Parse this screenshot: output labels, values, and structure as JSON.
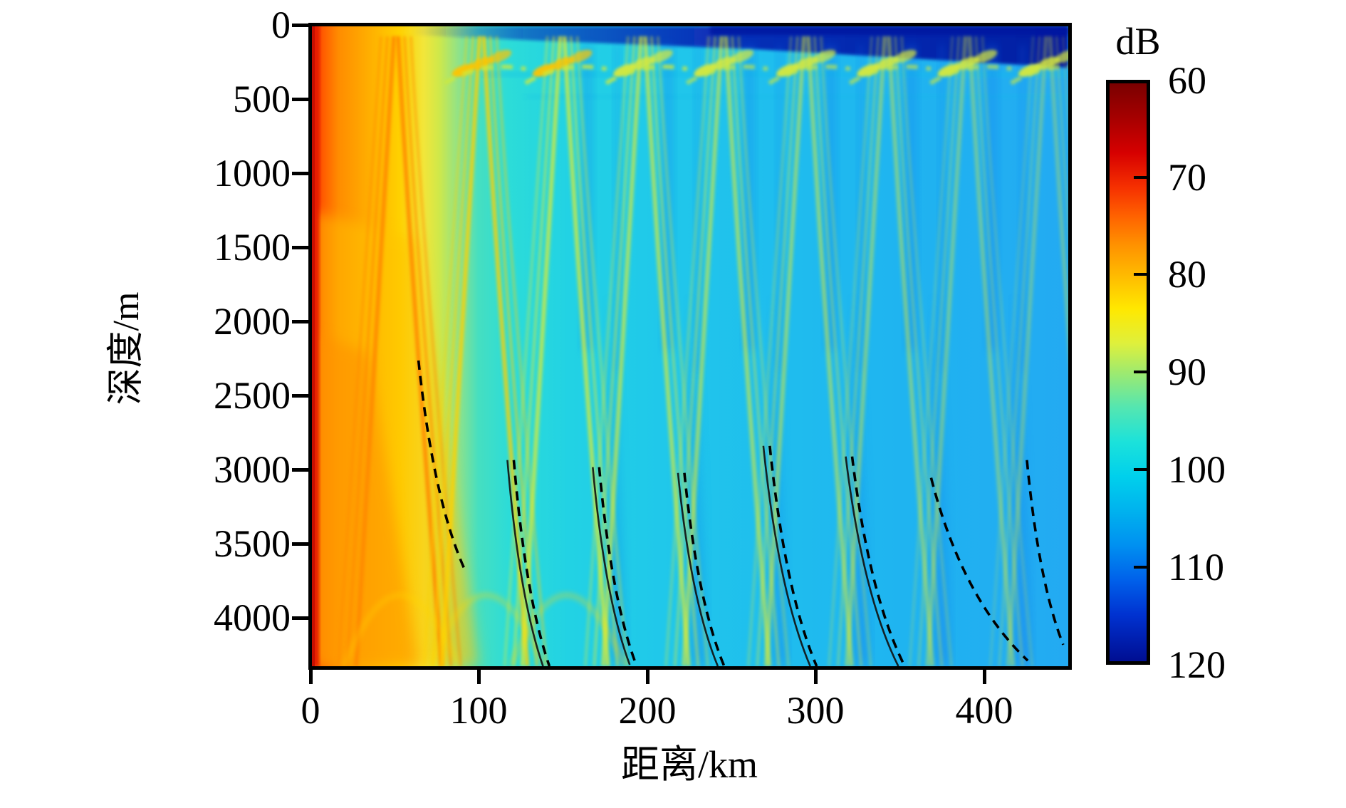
{
  "figure": {
    "y_axis": {
      "label": "深度/m",
      "ticks": [
        "0",
        "500",
        "1000",
        "1500",
        "2000",
        "2500",
        "3000",
        "3500",
        "4000"
      ]
    },
    "x_axis": {
      "label": "距离/km",
      "ticks": [
        "0",
        "100",
        "200",
        "300",
        "400"
      ]
    },
    "colorbar": {
      "title": "dB",
      "ticks": [
        "60",
        "70",
        "80",
        "90",
        "100",
        "110",
        "120"
      ]
    }
  },
  "chart_data": {
    "type": "heatmap",
    "title": "",
    "xlabel": "距离/km",
    "ylabel": "深度/m",
    "xlim": [
      0,
      450
    ],
    "ylim_depth_m": [
      0,
      4330
    ],
    "x_ticks": [
      0,
      100,
      200,
      300,
      400
    ],
    "y_ticks": [
      0,
      500,
      1000,
      1500,
      2000,
      2500,
      3000,
      3500,
      4000
    ],
    "grid": false,
    "legend": null,
    "colorbar": {
      "label": "dB",
      "min": 60,
      "max": 120,
      "ticks": [
        60,
        70,
        80,
        90,
        100,
        110,
        120
      ],
      "colormap": "jet-reversed: 60 dB dark red -> 80 dB yellow -> 90 dB green -> 100 dB cyan-blue -> 120 dB dark navy",
      "accent_colors": {
        "hot": "#e82000",
        "warm": "#ffc000",
        "mid": "#22d2e2",
        "cold": "#0050e0",
        "deep": "#000e92"
      }
    },
    "field_description": "Underwater-acoustic transmission-loss field (depth vs range). Intense 60-80 dB red/orange zone near the source (0-25 km, all depths); repeating convergence-zone caustic chevrons of ~80-90 dB (orange fading to yellow-green) about every 48 km; 95-105 dB cyan-blue background; ~110 dB deep-blue shadow wedges between zones below 2000 m; dark navy 115-120 dB near-surface layer beyond ~60 km with bright caustic dashes just below the surface at each zone.",
    "convergence_zones_km": [
      50,
      101,
      149,
      197,
      245,
      294,
      342,
      390,
      438
    ],
    "annotations": [
      {
        "type": "dashed-caustic-line",
        "color": "#000000",
        "x0_km": 63.4,
        "z0_m": 2261,
        "x1_km": 90.5,
        "z1_m": 3666
      },
      {
        "type": "dashed-caustic-line",
        "color": "#000000",
        "x0_km": 120.1,
        "z0_m": 2935,
        "x1_km": 141.3,
        "z1_m": 4330
      },
      {
        "type": "dashed-caustic-line",
        "color": "#000000",
        "x0_km": 170.9,
        "z0_m": 2983,
        "x1_km": 192.9,
        "z1_m": 4320
      },
      {
        "type": "dashed-caustic-line",
        "color": "#000000",
        "x0_km": 221.6,
        "z0_m": 3022,
        "x1_km": 245.3,
        "z1_m": 4330
      },
      {
        "type": "dashed-caustic-line",
        "color": "#000000",
        "x0_km": 272.4,
        "z0_m": 2839,
        "x1_km": 300.3,
        "z1_m": 4330
      },
      {
        "type": "dashed-caustic-line",
        "color": "#000000",
        "x0_km": 321.4,
        "z0_m": 2911,
        "x1_km": 352.7,
        "z1_m": 4330
      },
      {
        "type": "dashed-caustic-line",
        "color": "#000000",
        "x0_km": 368.4,
        "z0_m": 3055,
        "x1_km": 425.9,
        "z1_m": 4292
      },
      {
        "type": "dashed-caustic-line",
        "color": "#000000",
        "x0_km": 425.4,
        "z0_m": 2935,
        "x1_km": 447.0,
        "z1_m": 4185
      }
    ]
  }
}
